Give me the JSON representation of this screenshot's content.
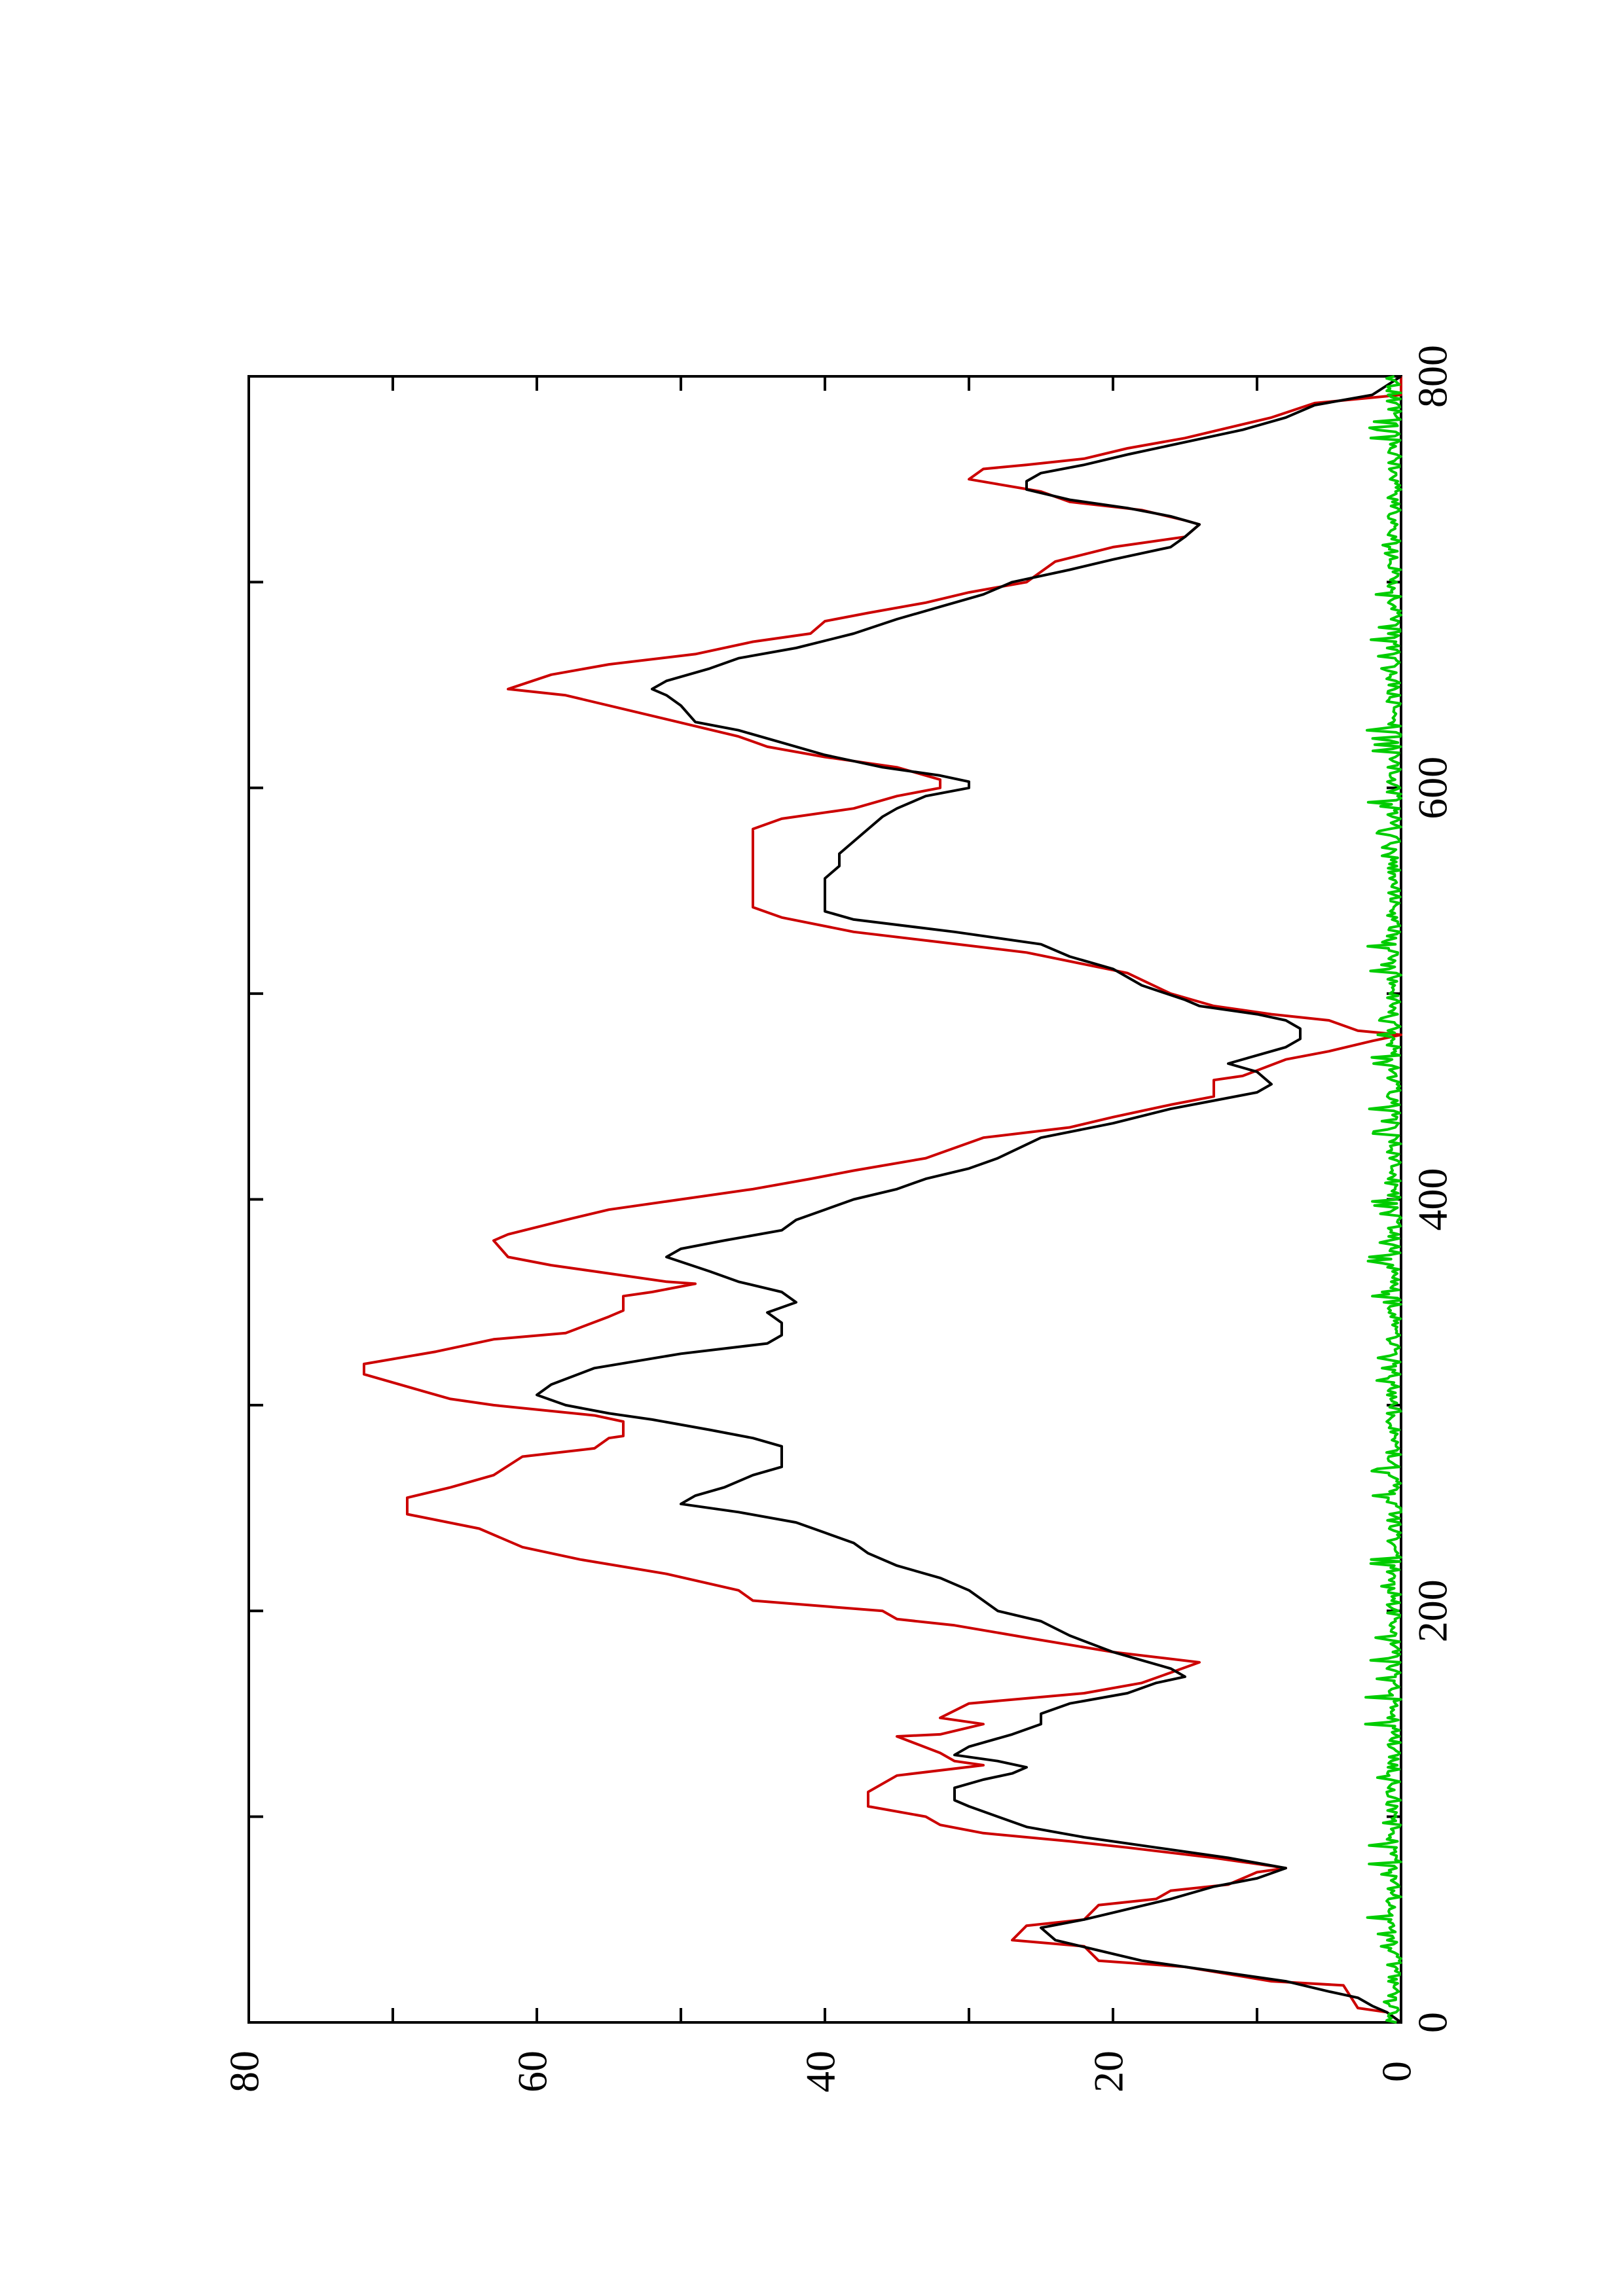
{
  "chart_data": {
    "type": "line",
    "orientation": "rotated-90-ccw",
    "title": "",
    "xlabel": "",
    "ylabel": "",
    "xlim": [
      0,
      800
    ],
    "ylim": [
      0,
      80
    ],
    "x_ticks": [
      0,
      200,
      400,
      600,
      800
    ],
    "x_minor_ticks": [
      100,
      300,
      500,
      700
    ],
    "y_ticks": [
      0,
      20,
      40,
      60,
      80
    ],
    "y_minor_ticks": [
      10,
      30,
      50,
      70
    ],
    "x_tick_labels": [
      "0",
      "200",
      "400",
      "600",
      "800"
    ],
    "y_tick_labels": [
      "0",
      "20",
      "40",
      "60",
      "80"
    ],
    "grid": false,
    "legend": "none",
    "series": [
      {
        "color": "#cc0000",
        "points": [
          [
            0,
            0
          ],
          [
            5,
            1
          ],
          [
            7,
            3
          ],
          [
            18,
            4
          ],
          [
            20,
            9
          ],
          [
            27,
            15
          ],
          [
            30,
            21
          ],
          [
            37,
            22
          ],
          [
            40,
            27
          ],
          [
            47,
            26
          ],
          [
            50,
            22
          ],
          [
            57,
            21
          ],
          [
            60,
            17
          ],
          [
            64,
            16
          ],
          [
            67,
            12
          ],
          [
            73,
            10
          ],
          [
            75,
            8
          ],
          [
            80,
            13
          ],
          [
            85,
            19
          ],
          [
            88,
            23
          ],
          [
            92,
            29
          ],
          [
            96,
            32
          ],
          [
            100,
            33
          ],
          [
            105,
            37
          ],
          [
            112,
            37
          ],
          [
            120,
            35
          ],
          [
            125,
            29
          ],
          [
            127,
            31
          ],
          [
            131,
            32
          ],
          [
            139,
            35
          ],
          [
            140,
            32
          ],
          [
            145,
            29
          ],
          [
            148,
            32
          ],
          [
            155,
            30
          ],
          [
            160,
            22
          ],
          [
            165,
            18
          ],
          [
            170,
            16
          ],
          [
            175,
            14
          ],
          [
            180,
            20
          ],
          [
            187,
            26
          ],
          [
            193,
            31
          ],
          [
            196,
            35
          ],
          [
            200,
            36
          ],
          [
            205,
            45
          ],
          [
            210,
            46
          ],
          [
            218,
            51
          ],
          [
            225,
            57
          ],
          [
            231,
            61
          ],
          [
            240,
            64
          ],
          [
            247,
            69
          ],
          [
            255,
            69
          ],
          [
            260,
            66
          ],
          [
            266,
            63
          ],
          [
            275,
            61
          ],
          [
            279,
            56
          ],
          [
            284,
            55
          ],
          [
            285,
            54
          ],
          [
            292,
            54
          ],
          [
            295,
            56
          ],
          [
            300,
            63
          ],
          [
            303,
            66
          ],
          [
            307,
            68
          ],
          [
            315,
            72
          ],
          [
            320,
            72
          ],
          [
            326,
            67
          ],
          [
            332,
            63
          ],
          [
            335,
            58
          ],
          [
            343,
            55
          ],
          [
            346,
            54
          ],
          [
            353,
            54
          ],
          [
            355,
            52
          ],
          [
            359,
            49
          ],
          [
            360,
            51
          ],
          [
            365,
            56
          ],
          [
            368,
            59
          ],
          [
            372,
            62
          ],
          [
            380,
            63
          ],
          [
            383,
            62
          ],
          [
            390,
            58
          ],
          [
            395,
            55
          ],
          [
            400,
            50
          ],
          [
            405,
            45
          ],
          [
            410,
            41
          ],
          [
            414,
            38
          ],
          [
            420,
            33
          ],
          [
            430,
            29
          ],
          [
            435,
            23
          ],
          [
            440,
            20
          ],
          [
            446,
            16
          ],
          [
            450,
            13
          ],
          [
            458,
            13
          ],
          [
            460,
            11
          ],
          [
            468,
            8
          ],
          [
            472,
            5
          ],
          [
            477,
            2
          ],
          [
            480,
            0
          ],
          [
            482,
            3
          ],
          [
            487,
            5
          ],
          [
            490,
            9
          ],
          [
            494,
            13
          ],
          [
            500,
            16
          ],
          [
            510,
            19
          ],
          [
            520,
            26
          ],
          [
            525,
            32
          ],
          [
            530,
            38
          ],
          [
            537,
            43
          ],
          [
            542,
            45
          ],
          [
            580,
            45
          ],
          [
            585,
            43
          ],
          [
            590,
            38
          ],
          [
            596,
            35
          ],
          [
            600,
            32
          ],
          [
            604,
            32
          ],
          [
            610,
            35
          ],
          [
            615,
            40
          ],
          [
            620,
            44
          ],
          [
            625,
            46
          ],
          [
            630,
            49
          ],
          [
            635,
            52
          ],
          [
            645,
            58
          ],
          [
            648,
            62
          ],
          [
            655,
            59
          ],
          [
            660,
            55
          ],
          [
            665,
            49
          ],
          [
            671,
            45
          ],
          [
            675,
            41
          ],
          [
            681,
            40
          ],
          [
            685,
            37
          ],
          [
            690,
            33
          ],
          [
            695,
            30
          ],
          [
            700,
            26
          ],
          [
            710,
            24
          ],
          [
            717,
            20
          ],
          [
            722,
            15
          ],
          [
            728,
            14
          ],
          [
            730,
            15
          ],
          [
            735,
            18
          ],
          [
            739,
            23
          ],
          [
            744,
            25
          ],
          [
            750,
            30
          ],
          [
            755,
            29
          ],
          [
            757,
            26
          ],
          [
            760,
            22
          ],
          [
            765,
            19
          ],
          [
            770,
            15
          ],
          [
            775,
            12
          ],
          [
            780,
            9
          ],
          [
            787,
            6
          ],
          [
            791,
            0
          ],
          [
            800,
            0
          ]
        ]
      },
      {
        "color": "#000000",
        "points": [
          [
            0,
            0
          ],
          [
            5,
            1
          ],
          [
            8,
            2
          ],
          [
            12,
            3
          ],
          [
            15,
            5
          ],
          [
            20,
            8
          ],
          [
            25,
            13
          ],
          [
            30,
            18
          ],
          [
            35,
            21
          ],
          [
            40,
            24
          ],
          [
            46,
            25
          ],
          [
            50,
            22
          ],
          [
            55,
            19
          ],
          [
            60,
            16
          ],
          [
            66,
            13
          ],
          [
            70,
            10
          ],
          [
            75,
            8
          ],
          [
            80,
            12
          ],
          [
            85,
            17
          ],
          [
            90,
            22
          ],
          [
            95,
            26
          ],
          [
            100,
            28
          ],
          [
            105,
            30
          ],
          [
            108,
            31
          ],
          [
            114,
            31
          ],
          [
            118,
            29
          ],
          [
            121,
            27
          ],
          [
            124,
            26
          ],
          [
            127,
            28
          ],
          [
            130,
            31
          ],
          [
            134,
            30
          ],
          [
            140,
            27
          ],
          [
            145,
            25
          ],
          [
            150,
            25
          ],
          [
            155,
            23
          ],
          [
            160,
            19
          ],
          [
            165,
            17
          ],
          [
            168,
            15
          ],
          [
            172,
            16
          ],
          [
            176,
            18
          ],
          [
            180,
            20
          ],
          [
            188,
            23
          ],
          [
            195,
            25
          ],
          [
            200,
            28
          ],
          [
            210,
            30
          ],
          [
            216,
            32
          ],
          [
            222,
            35
          ],
          [
            228,
            37
          ],
          [
            233,
            38
          ],
          [
            238,
            40
          ],
          [
            243,
            42
          ],
          [
            248,
            46
          ],
          [
            252,
            50
          ],
          [
            256,
            49
          ],
          [
            260,
            47
          ],
          [
            266,
            45
          ],
          [
            270,
            43
          ],
          [
            276,
            43
          ],
          [
            280,
            43
          ],
          [
            284,
            45
          ],
          [
            288,
            48
          ],
          [
            293,
            52
          ],
          [
            296,
            55
          ],
          [
            300,
            58
          ],
          [
            305,
            60
          ],
          [
            310,
            59
          ],
          [
            318,
            56
          ],
          [
            325,
            50
          ],
          [
            330,
            44
          ],
          [
            334,
            43
          ],
          [
            340,
            43
          ],
          [
            345,
            44
          ],
          [
            350,
            42
          ],
          [
            355,
            43
          ],
          [
            360,
            46
          ],
          [
            365,
            48
          ],
          [
            372,
            51
          ],
          [
            376,
            50
          ],
          [
            380,
            47
          ],
          [
            385,
            43
          ],
          [
            390,
            42
          ],
          [
            395,
            40
          ],
          [
            400,
            38
          ],
          [
            405,
            35
          ],
          [
            410,
            33
          ],
          [
            415,
            30
          ],
          [
            420,
            28
          ],
          [
            430,
            25
          ],
          [
            437,
            20
          ],
          [
            444,
            16
          ],
          [
            448,
            13
          ],
          [
            452,
            10
          ],
          [
            456,
            9
          ],
          [
            462,
            10
          ],
          [
            466,
            12
          ],
          [
            470,
            10
          ],
          [
            474,
            8
          ],
          [
            478,
            7
          ],
          [
            483,
            7
          ],
          [
            487,
            8
          ],
          [
            490,
            10
          ],
          [
            494,
            14
          ],
          [
            497,
            15
          ],
          [
            504,
            18
          ],
          [
            512,
            20
          ],
          [
            518,
            23
          ],
          [
            524,
            25
          ],
          [
            530,
            31
          ],
          [
            536,
            38
          ],
          [
            540,
            40
          ],
          [
            545,
            40
          ],
          [
            550,
            40
          ],
          [
            556,
            40
          ],
          [
            562,
            39
          ],
          [
            568,
            39
          ],
          [
            574,
            38
          ],
          [
            580,
            37
          ],
          [
            586,
            36
          ],
          [
            590,
            35
          ],
          [
            596,
            33
          ],
          [
            600,
            30
          ],
          [
            603,
            30
          ],
          [
            606,
            32
          ],
          [
            610,
            36
          ],
          [
            616,
            40
          ],
          [
            622,
            43
          ],
          [
            628,
            46
          ],
          [
            632,
            49
          ],
          [
            640,
            50
          ],
          [
            645,
            51
          ],
          [
            648,
            52
          ],
          [
            652,
            51
          ],
          [
            658,
            48
          ],
          [
            663,
            46
          ],
          [
            668,
            42
          ],
          [
            675,
            38
          ],
          [
            682,
            35
          ],
          [
            688,
            32
          ],
          [
            694,
            29
          ],
          [
            700,
            27
          ],
          [
            706,
            23
          ],
          [
            711,
            20
          ],
          [
            717,
            16
          ],
          [
            722,
            15
          ],
          [
            728,
            14
          ],
          [
            732,
            16
          ],
          [
            736,
            19
          ],
          [
            740,
            23
          ],
          [
            745,
            26
          ],
          [
            749,
            26
          ],
          [
            753,
            25
          ],
          [
            757,
            22
          ],
          [
            762,
            19
          ],
          [
            768,
            15
          ],
          [
            774,
            11
          ],
          [
            780,
            8
          ],
          [
            786,
            6
          ],
          [
            791,
            2
          ],
          [
            800,
            0
          ]
        ]
      },
      {
        "color": "#00cc00",
        "noise": true,
        "x_start": 0,
        "x_end": 800,
        "n_points": 800,
        "baseline": 0.5,
        "amplitude_max": 2.5
      }
    ]
  }
}
